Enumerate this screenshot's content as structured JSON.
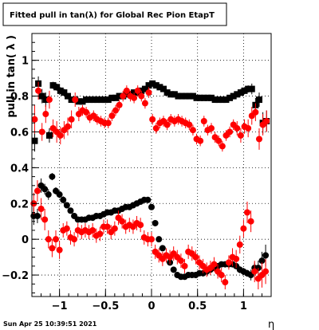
{
  "chart_data": {
    "type": "scatter",
    "title": "Fitted pull in tan(λ) for Global Rec Pion EtapT",
    "xlabel": "η",
    "ylabel": "pull in tan( λ )",
    "xlim": [
      -1.3,
      1.3
    ],
    "ylim": [
      -0.32,
      1.15
    ],
    "x_ticks": [
      -1,
      -0.5,
      0,
      0.5,
      1
    ],
    "x_tick_labels": [
      "−1",
      "−0.5",
      "0",
      "0.5",
      "1"
    ],
    "y_ticks": [
      -0.2,
      0,
      0.2,
      0.4,
      0.6,
      0.8,
      1
    ],
    "y_tick_labels": [
      "−0.2",
      "0",
      "0.2",
      "0.4",
      "0.6",
      "0.8",
      "1"
    ],
    "grid": true,
    "timestamp": "Sun Apr 25 10:39:51 2021",
    "series": [
      {
        "color": "#000000",
        "marker": "square",
        "x": [
          -1.27,
          -1.23,
          -1.19,
          -1.15,
          -1.11,
          -1.07,
          -1.03,
          -0.99,
          -0.95,
          -0.91,
          -0.87,
          -0.83,
          -0.79,
          -0.75,
          -0.71,
          -0.67,
          -0.63,
          -0.59,
          -0.55,
          -0.51,
          -0.47,
          -0.43,
          -0.39,
          -0.35,
          -0.31,
          -0.27,
          -0.23,
          -0.19,
          -0.15,
          -0.11,
          -0.07,
          -0.03,
          0.01,
          0.05,
          0.09,
          0.13,
          0.17,
          0.21,
          0.25,
          0.29,
          0.33,
          0.37,
          0.41,
          0.45,
          0.49,
          0.53,
          0.57,
          0.61,
          0.65,
          0.69,
          0.73,
          0.77,
          0.81,
          0.85,
          0.89,
          0.93,
          0.97,
          1.01,
          1.05,
          1.09,
          1.13,
          1.17,
          1.21,
          1.25
        ],
        "y": [
          0.55,
          0.87,
          0.8,
          0.78,
          0.58,
          0.86,
          0.85,
          0.83,
          0.82,
          0.8,
          0.78,
          0.78,
          0.77,
          0.77,
          0.78,
          0.78,
          0.78,
          0.78,
          0.78,
          0.78,
          0.78,
          0.79,
          0.79,
          0.8,
          0.8,
          0.81,
          0.81,
          0.82,
          0.82,
          0.83,
          0.84,
          0.86,
          0.87,
          0.86,
          0.85,
          0.84,
          0.82,
          0.81,
          0.81,
          0.8,
          0.8,
          0.8,
          0.8,
          0.8,
          0.79,
          0.79,
          0.79,
          0.79,
          0.79,
          0.78,
          0.78,
          0.78,
          0.78,
          0.79,
          0.8,
          0.81,
          0.82,
          0.83,
          0.84,
          0.84,
          0.75,
          0.78,
          0.65,
          0.66
        ],
        "yerr": [
          0.06,
          0.04,
          0.04,
          0.04,
          0.04,
          0.02,
          0.02,
          0.02,
          0.02,
          0.01,
          0.01,
          0.01,
          0.01,
          0.01,
          0.01,
          0.01,
          0.01,
          0.01,
          0.01,
          0.01,
          0.01,
          0.01,
          0.01,
          0.01,
          0.01,
          0.01,
          0.01,
          0.01,
          0.01,
          0.01,
          0.01,
          0.01,
          0.01,
          0.01,
          0.01,
          0.01,
          0.01,
          0.01,
          0.01,
          0.01,
          0.01,
          0.01,
          0.01,
          0.01,
          0.01,
          0.01,
          0.01,
          0.01,
          0.01,
          0.01,
          0.01,
          0.01,
          0.01,
          0.01,
          0.01,
          0.01,
          0.02,
          0.02,
          0.02,
          0.03,
          0.04,
          0.04,
          0.06,
          0.06
        ]
      },
      {
        "color": "#ff0000",
        "marker": "circle",
        "x": [
          -1.27,
          -1.23,
          -1.19,
          -1.15,
          -1.11,
          -1.07,
          -1.03,
          -0.99,
          -0.95,
          -0.91,
          -0.87,
          -0.83,
          -0.79,
          -0.75,
          -0.71,
          -0.67,
          -0.63,
          -0.59,
          -0.55,
          -0.51,
          -0.47,
          -0.43,
          -0.39,
          -0.35,
          -0.31,
          -0.27,
          -0.23,
          -0.19,
          -0.15,
          -0.11,
          -0.07,
          -0.03,
          0.01,
          0.05,
          0.09,
          0.13,
          0.17,
          0.21,
          0.25,
          0.29,
          0.33,
          0.37,
          0.41,
          0.45,
          0.49,
          0.53,
          0.57,
          0.61,
          0.65,
          0.69,
          0.73,
          0.77,
          0.81,
          0.85,
          0.89,
          0.93,
          0.97,
          1.01,
          1.05,
          1.09,
          1.13,
          1.17,
          1.21,
          1.25
        ],
        "y": [
          0.67,
          0.83,
          0.6,
          0.7,
          0.78,
          0.62,
          0.6,
          0.58,
          0.61,
          0.63,
          0.67,
          0.78,
          0.7,
          0.72,
          0.71,
          0.68,
          0.69,
          0.67,
          0.66,
          0.65,
          0.65,
          0.69,
          0.72,
          0.75,
          0.8,
          0.83,
          0.8,
          0.79,
          0.83,
          0.8,
          0.76,
          0.82,
          0.67,
          0.62,
          0.65,
          0.66,
          0.64,
          0.67,
          0.66,
          0.67,
          0.66,
          0.65,
          0.64,
          0.61,
          0.56,
          0.55,
          0.66,
          0.61,
          0.62,
          0.57,
          0.55,
          0.52,
          0.58,
          0.6,
          0.64,
          0.62,
          0.58,
          0.63,
          0.62,
          0.69,
          0.71,
          0.56,
          0.64,
          0.66
        ],
        "yerr": [
          0.08,
          0.05,
          0.05,
          0.05,
          0.05,
          0.05,
          0.06,
          0.05,
          0.05,
          0.05,
          0.05,
          0.04,
          0.04,
          0.03,
          0.03,
          0.03,
          0.03,
          0.03,
          0.03,
          0.03,
          0.03,
          0.03,
          0.03,
          0.03,
          0.03,
          0.03,
          0.03,
          0.03,
          0.03,
          0.03,
          0.03,
          0.03,
          0.03,
          0.03,
          0.03,
          0.03,
          0.03,
          0.03,
          0.03,
          0.03,
          0.03,
          0.03,
          0.03,
          0.03,
          0.03,
          0.03,
          0.03,
          0.03,
          0.03,
          0.03,
          0.03,
          0.03,
          0.03,
          0.03,
          0.03,
          0.04,
          0.04,
          0.04,
          0.05,
          0.05,
          0.05,
          0.06,
          0.06,
          0.06
        ]
      },
      {
        "color": "#000000",
        "marker": "circle",
        "x": [
          -1.28,
          -1.24,
          -1.2,
          -1.16,
          -1.12,
          -1.08,
          -1.04,
          -1.0,
          -0.96,
          -0.92,
          -0.88,
          -0.84,
          -0.8,
          -0.76,
          -0.72,
          -0.68,
          -0.64,
          -0.6,
          -0.56,
          -0.52,
          -0.48,
          -0.44,
          -0.4,
          -0.36,
          -0.32,
          -0.28,
          -0.24,
          -0.2,
          -0.16,
          -0.12,
          -0.08,
          -0.04,
          0.0,
          0.04,
          0.08,
          0.12,
          0.16,
          0.2,
          0.24,
          0.28,
          0.32,
          0.36,
          0.4,
          0.44,
          0.48,
          0.52,
          0.56,
          0.6,
          0.64,
          0.68,
          0.72,
          0.76,
          0.8,
          0.84,
          0.88,
          0.92,
          0.96,
          1.0,
          1.04,
          1.08,
          1.12,
          1.16,
          1.2,
          1.24
        ],
        "y": [
          0.13,
          0.13,
          0.3,
          0.28,
          0.25,
          0.35,
          0.27,
          0.25,
          0.22,
          0.19,
          0.16,
          0.13,
          0.11,
          0.11,
          0.11,
          0.12,
          0.12,
          0.13,
          0.13,
          0.14,
          0.15,
          0.15,
          0.16,
          0.16,
          0.17,
          0.18,
          0.18,
          0.19,
          0.2,
          0.21,
          0.22,
          0.22,
          0.18,
          0.09,
          0.0,
          -0.05,
          -0.09,
          -0.13,
          -0.17,
          -0.2,
          -0.21,
          -0.21,
          -0.2,
          -0.2,
          -0.2,
          -0.19,
          -0.19,
          -0.18,
          -0.17,
          -0.16,
          -0.15,
          -0.14,
          -0.14,
          -0.14,
          -0.14,
          -0.15,
          -0.17,
          -0.18,
          -0.19,
          -0.2,
          -0.16,
          -0.16,
          -0.12,
          -0.09
        ],
        "yerr": [
          0.05,
          0.04,
          0.04,
          0.03,
          0.03,
          0.02,
          0.02,
          0.02,
          0.02,
          0.01,
          0.01,
          0.01,
          0.01,
          0.01,
          0.01,
          0.01,
          0.01,
          0.01,
          0.01,
          0.01,
          0.01,
          0.01,
          0.01,
          0.01,
          0.01,
          0.01,
          0.01,
          0.01,
          0.01,
          0.01,
          0.01,
          0.01,
          0.01,
          0.01,
          0.01,
          0.01,
          0.01,
          0.01,
          0.01,
          0.01,
          0.01,
          0.01,
          0.01,
          0.01,
          0.01,
          0.01,
          0.01,
          0.01,
          0.01,
          0.01,
          0.01,
          0.01,
          0.01,
          0.01,
          0.01,
          0.01,
          0.02,
          0.02,
          0.02,
          0.03,
          0.03,
          0.04,
          0.05,
          0.06
        ]
      },
      {
        "color": "#ff0000",
        "marker": "circle",
        "x": [
          -1.28,
          -1.24,
          -1.2,
          -1.16,
          -1.12,
          -1.08,
          -1.04,
          -1.0,
          -0.96,
          -0.92,
          -0.88,
          -0.84,
          -0.8,
          -0.76,
          -0.72,
          -0.68,
          -0.64,
          -0.6,
          -0.56,
          -0.52,
          -0.48,
          -0.44,
          -0.4,
          -0.36,
          -0.32,
          -0.28,
          -0.24,
          -0.2,
          -0.16,
          -0.12,
          -0.08,
          -0.04,
          0.0,
          0.04,
          0.08,
          0.12,
          0.16,
          0.2,
          0.24,
          0.28,
          0.32,
          0.36,
          0.4,
          0.44,
          0.48,
          0.52,
          0.56,
          0.6,
          0.64,
          0.68,
          0.72,
          0.76,
          0.8,
          0.84,
          0.88,
          0.92,
          0.96,
          1.0,
          1.04,
          1.08,
          1.12,
          1.16,
          1.2,
          1.24
        ],
        "y": [
          0.2,
          0.27,
          0.17,
          0.11,
          0.0,
          -0.05,
          0.0,
          -0.06,
          0.05,
          0.06,
          0.01,
          0.0,
          0.05,
          0.04,
          0.05,
          0.04,
          0.05,
          0.02,
          0.03,
          0.07,
          0.07,
          0.04,
          0.06,
          0.12,
          0.1,
          0.07,
          0.08,
          0.07,
          0.09,
          0.08,
          0.01,
          0.0,
          0.0,
          -0.07,
          -0.09,
          -0.11,
          -0.09,
          -0.1,
          -0.08,
          -0.1,
          -0.12,
          -0.15,
          -0.07,
          -0.08,
          -0.1,
          -0.13,
          -0.15,
          -0.17,
          -0.16,
          -0.14,
          -0.18,
          -0.2,
          -0.24,
          -0.13,
          -0.1,
          -0.11,
          -0.03,
          0.06,
          0.15,
          0.1,
          -0.18,
          -0.22,
          -0.2,
          -0.18
        ],
        "yerr": [
          0.06,
          0.06,
          0.06,
          0.06,
          0.05,
          0.05,
          0.05,
          0.05,
          0.04,
          0.04,
          0.04,
          0.04,
          0.04,
          0.04,
          0.04,
          0.04,
          0.04,
          0.04,
          0.04,
          0.04,
          0.04,
          0.04,
          0.04,
          0.04,
          0.04,
          0.04,
          0.04,
          0.04,
          0.04,
          0.04,
          0.04,
          0.04,
          0.04,
          0.04,
          0.04,
          0.04,
          0.04,
          0.04,
          0.04,
          0.04,
          0.04,
          0.04,
          0.04,
          0.04,
          0.04,
          0.04,
          0.04,
          0.04,
          0.04,
          0.04,
          0.04,
          0.04,
          0.04,
          0.04,
          0.05,
          0.05,
          0.05,
          0.05,
          0.06,
          0.06,
          0.06,
          0.06,
          0.07,
          0.07
        ]
      }
    ]
  }
}
